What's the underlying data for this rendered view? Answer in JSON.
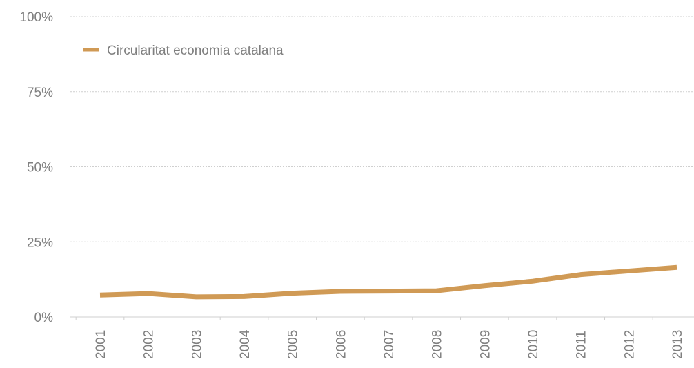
{
  "chart_data": {
    "type": "line",
    "x": [
      "2001",
      "2002",
      "2003",
      "2004",
      "2005",
      "2006",
      "2007",
      "2008",
      "2009",
      "2010",
      "2011",
      "2012",
      "2013"
    ],
    "series": [
      {
        "name": "Circularitat economia catalana",
        "color": "#d09a55",
        "values": [
          7.3,
          7.8,
          6.7,
          6.8,
          7.9,
          8.5,
          8.6,
          8.7,
          10.4,
          11.9,
          14.1,
          15.3,
          16.5
        ]
      }
    ],
    "ylim": [
      0,
      100
    ],
    "yticks": [
      0,
      25,
      50,
      75,
      100
    ],
    "ytick_labels": [
      "0%",
      "25%",
      "50%",
      "75%",
      "100%"
    ],
    "title": "",
    "xlabel": "",
    "ylabel": "",
    "grid": true,
    "legend_position": "top-left"
  }
}
